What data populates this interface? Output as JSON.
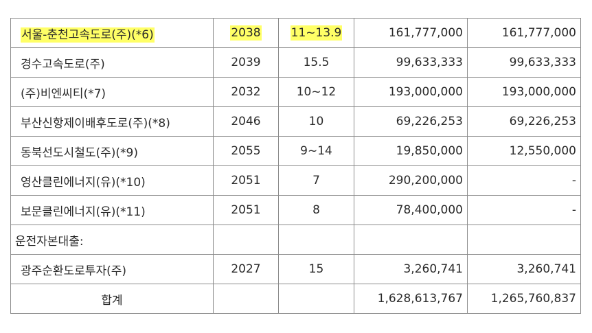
{
  "table": {
    "rows": [
      {
        "name": "서울-춘천고속도로(주)(*6)",
        "year": "2038",
        "rate": "11~13.9",
        "amount1": "161,777,000",
        "amount2": "161,777,000"
      },
      {
        "name": "경수고속도로(주)",
        "year": "2039",
        "rate": "15.5",
        "amount1": "99,633,333",
        "amount2": "99,633,333"
      },
      {
        "name": "(주)비엔씨티(*7)",
        "year": "2032",
        "rate": "10~12",
        "amount1": "193,000,000",
        "amount2": "193,000,000"
      },
      {
        "name": "부산신항제이배후도로(주)(*8)",
        "year": "2046",
        "rate": "10",
        "amount1": "69,226,253",
        "amount2": "69,226,253"
      },
      {
        "name": "동북선도시철도(주)(*9)",
        "year": "2055",
        "rate": "9~14",
        "amount1": "19,850,000",
        "amount2": "12,550,000"
      },
      {
        "name": "영산클린에너지(유)(*10)",
        "year": "2051",
        "rate": "7",
        "amount1": "290,200,000",
        "amount2": "-"
      },
      {
        "name": "보문클린에너지(유)(*11)",
        "year": "2051",
        "rate": "8",
        "amount1": "78,400,000",
        "amount2": "-"
      },
      {
        "name": "운전자본대출:",
        "year": "",
        "rate": "",
        "amount1": "",
        "amount2": ""
      },
      {
        "name": "광주순환도로투자(주)",
        "year": "2027",
        "rate": "15",
        "amount1": "3,260,741",
        "amount2": "3,260,741"
      }
    ],
    "total": {
      "label": "합계",
      "year": "",
      "rate": "",
      "amount1": "1,628,613,767",
      "amount2": "1,265,760,837"
    }
  },
  "colors": {
    "highlight": "#ffff66",
    "border": "#8a8a8a"
  }
}
